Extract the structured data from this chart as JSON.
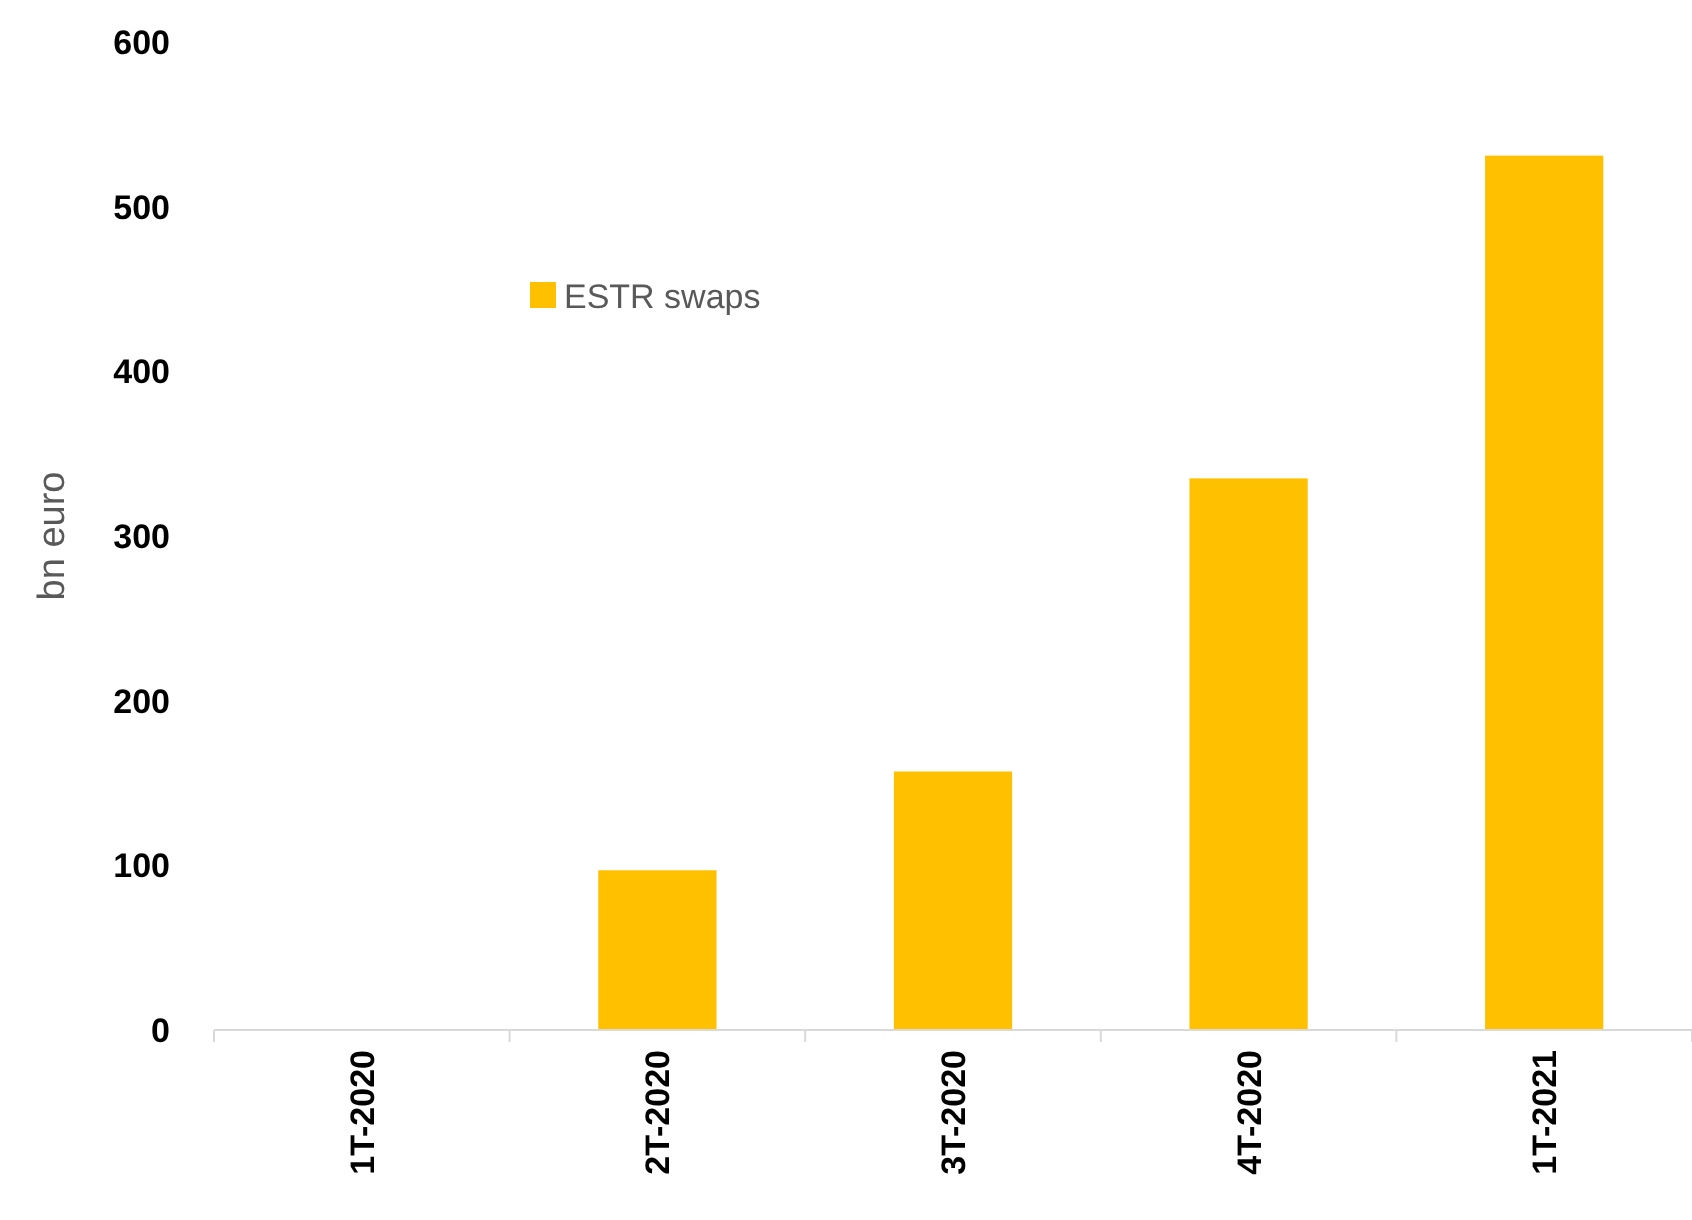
{
  "chart_data": {
    "type": "bar",
    "ylabel": "bn euro",
    "categories": [
      "1T-2020",
      "2T-2020",
      "3T-2020",
      "4T-2020",
      "1T-2021"
    ],
    "series": [
      {
        "name": "ESTR swaps",
        "color": "#ffc000",
        "values": [
          0,
          97,
          157,
          335,
          531
        ]
      }
    ],
    "ylim": [
      0,
      600
    ],
    "yticks": [
      0,
      100,
      200,
      300,
      400,
      500,
      600
    ],
    "grid": false,
    "legend": "top left"
  }
}
